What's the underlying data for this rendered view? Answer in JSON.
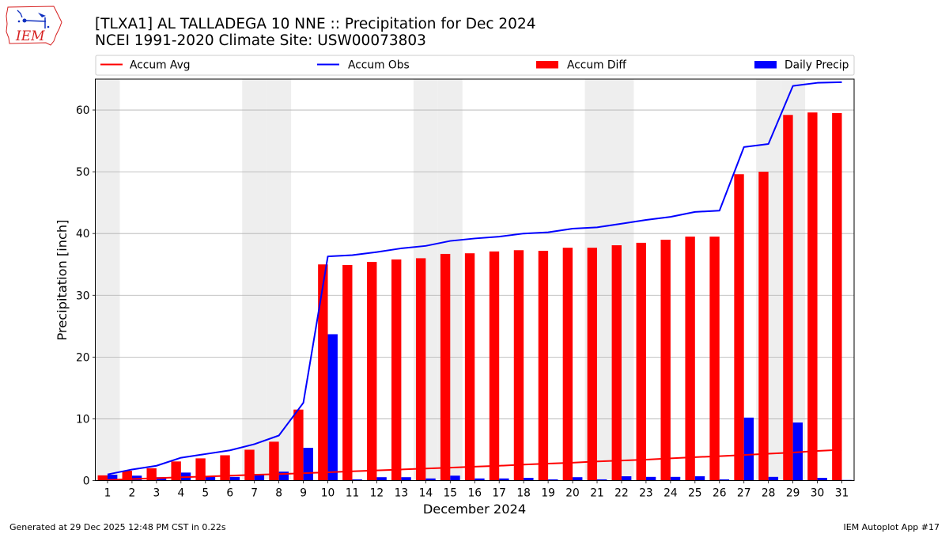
{
  "logo": {
    "text": "IEM"
  },
  "footer": {
    "left": "Generated at 29 Dec 2025 12:48 PM CST in 0.22s",
    "right": "IEM Autoplot App #17"
  },
  "chart_data": {
    "type": "bar",
    "title": "[TLXA1] AL TALLADEGA 10 NNE :: Precipitation for Dec 2024",
    "subtitle": "NCEI 1991-2020 Climate Site: USW00073803",
    "xlabel": "December 2024",
    "ylabel": "Precipitation [inch]",
    "x": [
      1,
      2,
      3,
      4,
      5,
      6,
      7,
      8,
      9,
      10,
      11,
      12,
      13,
      14,
      15,
      16,
      17,
      18,
      19,
      20,
      21,
      22,
      23,
      24,
      25,
      26,
      27,
      28,
      29,
      30,
      31
    ],
    "xlim": [
      0.5,
      31.5
    ],
    "ylim": [
      0,
      65
    ],
    "yticks": [
      0,
      10,
      20,
      30,
      40,
      50,
      60
    ],
    "grid": "horizontal",
    "legend_position": "top, above plot, horizontal",
    "shaded_weekend_days": [
      1,
      7,
      8,
      14,
      15,
      21,
      22,
      28,
      29
    ],
    "shade_color": "#eeeeee",
    "series": [
      {
        "name": "Accum Avg",
        "type": "line",
        "color": "#ff0000",
        "values": [
          0.1,
          0.25,
          0.4,
          0.55,
          0.65,
          0.8,
          0.95,
          1.05,
          1.2,
          1.35,
          1.5,
          1.65,
          1.8,
          1.95,
          2.1,
          2.25,
          2.4,
          2.6,
          2.75,
          2.9,
          3.1,
          3.25,
          3.4,
          3.6,
          3.8,
          3.95,
          4.15,
          4.35,
          4.55,
          4.8,
          5.0
        ]
      },
      {
        "name": "Accum Obs",
        "type": "line",
        "color": "#0000ff",
        "values": [
          1.0,
          1.8,
          2.4,
          3.7,
          4.3,
          4.9,
          5.9,
          7.3,
          12.6,
          36.3,
          36.5,
          37.0,
          37.6,
          38.0,
          38.8,
          39.2,
          39.5,
          40.0,
          40.2,
          40.8,
          41.0,
          41.6,
          42.2,
          42.7,
          43.5,
          43.7,
          54.0,
          54.5,
          63.9,
          64.4,
          64.5
        ]
      },
      {
        "name": "Accum Diff",
        "type": "bar",
        "color": "#ff0000",
        "values": [
          0.85,
          1.6,
          2.0,
          3.1,
          3.6,
          4.1,
          5.0,
          6.3,
          11.5,
          35.0,
          34.9,
          35.4,
          35.8,
          36.0,
          36.7,
          36.8,
          37.1,
          37.3,
          37.2,
          37.7,
          37.7,
          38.1,
          38.5,
          39.0,
          39.5,
          39.5,
          49.6,
          50.0,
          59.2,
          59.6,
          59.5
        ]
      },
      {
        "name": "Daily Precip",
        "type": "bar",
        "color": "#0000ff",
        "values": [
          0.95,
          0.8,
          0.55,
          1.3,
          0.6,
          0.6,
          1.0,
          1.45,
          5.3,
          23.7,
          0.2,
          0.55,
          0.55,
          0.35,
          0.8,
          0.35,
          0.35,
          0.45,
          0.2,
          0.55,
          0.2,
          0.7,
          0.6,
          0.6,
          0.7,
          0.2,
          10.2,
          0.6,
          9.4,
          0.45,
          0.1
        ]
      }
    ]
  }
}
